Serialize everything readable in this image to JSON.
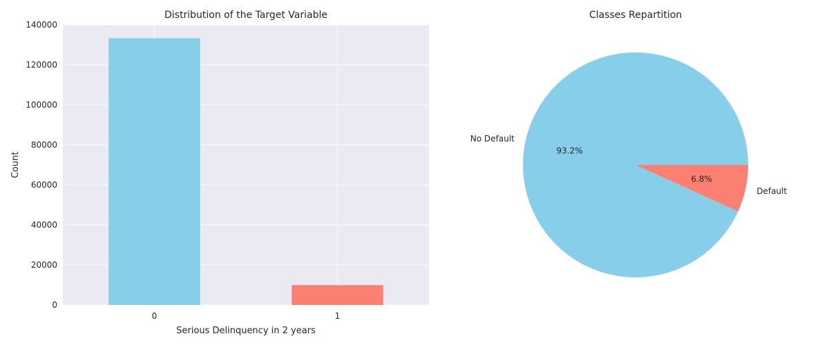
{
  "chart_data": [
    {
      "type": "bar",
      "title": "Distribution of the Target Variable",
      "xlabel": "Serious Delinquency in 2 years",
      "ylabel": "Count",
      "categories": [
        "0",
        "1"
      ],
      "values": [
        133300,
        9900
      ],
      "ylim": [
        0,
        140000
      ],
      "yticks": [
        0,
        20000,
        40000,
        60000,
        80000,
        100000,
        120000,
        140000
      ],
      "colors": [
        "#87ceeb",
        "#fa8072"
      ],
      "grid": true,
      "background": "#eaeaf2"
    },
    {
      "type": "pie",
      "title": "Classes Repartition",
      "labels": [
        "No Default",
        "Default"
      ],
      "values": [
        93.2,
        6.8
      ],
      "autopct": [
        "93.2%",
        "6.8%"
      ],
      "colors": [
        "#87ceeb",
        "#fa8072"
      ]
    }
  ]
}
